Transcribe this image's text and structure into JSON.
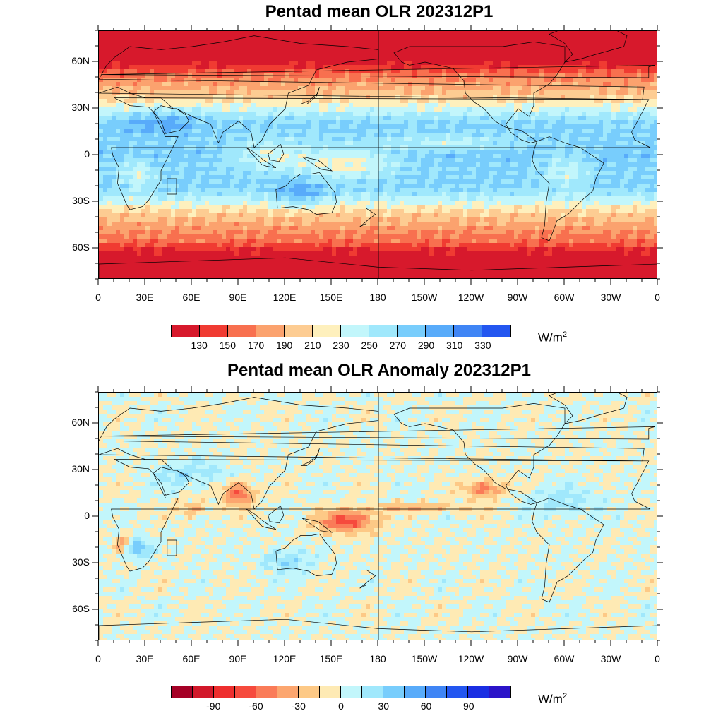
{
  "panels": [
    {
      "title": "Pentad mean OLR 202312P1",
      "lat_labels": [
        "60N",
        "30N",
        "0",
        "30S",
        "60S"
      ],
      "lon_labels": [
        "0",
        "30E",
        "60E",
        "90E",
        "120E",
        "150E",
        "180",
        "150W",
        "120W",
        "90W",
        "60W",
        "30W",
        "0"
      ],
      "colorbar": {
        "colors": [
          "#d7192c",
          "#f03b32",
          "#f8704f",
          "#fba26e",
          "#fdcc92",
          "#fef0bd",
          "#c2f6fb",
          "#a0e8fc",
          "#78cdfc",
          "#58abfa",
          "#3f85f5",
          "#2356f0"
        ],
        "labels": [
          "130",
          "150",
          "170",
          "190",
          "210",
          "230",
          "250",
          "270",
          "290",
          "310",
          "330"
        ],
        "units": "W/m",
        "units_sup": "2"
      }
    },
    {
      "title": "Pentad mean OLR Anomaly 202312P1",
      "lat_labels": [
        "60N",
        "30N",
        "0",
        "30S",
        "60S"
      ],
      "lon_labels": [
        "0",
        "30E",
        "60E",
        "90E",
        "120E",
        "150E",
        "180",
        "150W",
        "120W",
        "90W",
        "60W",
        "30W",
        "0"
      ],
      "colorbar": {
        "colors": [
          "#a50026",
          "#d2182a",
          "#ee2e2e",
          "#f64a3d",
          "#fa7b58",
          "#fca66f",
          "#fdc986",
          "#feeab4",
          "#c2f6fb",
          "#a0e8fc",
          "#78cdfc",
          "#58abfa",
          "#3f85f5",
          "#2356f0",
          "#1a2ee3",
          "#2b14c9"
        ],
        "labels": [
          "-90",
          "-60",
          "-30",
          "0",
          "30",
          "60",
          "90"
        ],
        "label_positions": [
          1.5,
          3.5,
          5.5,
          7.5,
          9.5,
          11.5,
          13.5
        ],
        "units": "W/m",
        "units_sup": "2"
      }
    }
  ]
}
